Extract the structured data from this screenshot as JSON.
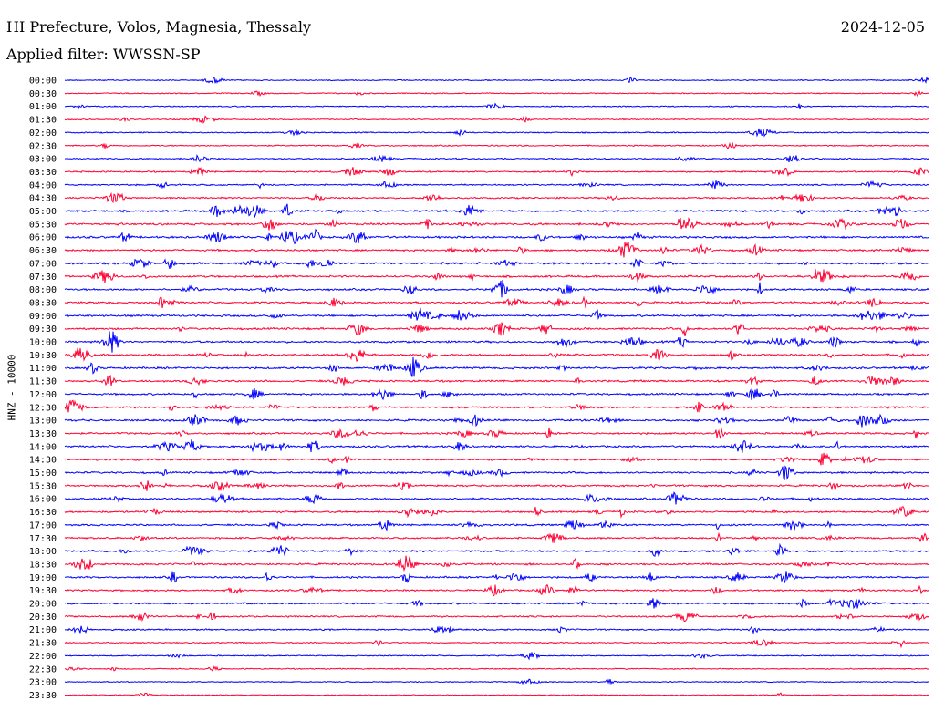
{
  "header": {
    "station": "HI Prefecture, Volos, Magnesia, Thessaly",
    "date": "2024-12-05",
    "filter": "Applied filter: WWSSN-SP"
  },
  "chart_data": {
    "type": "line",
    "ylabel": "HNZ - 10000",
    "colors": [
      "#0000ff",
      "#ff0033"
    ],
    "rows": [
      "00:00",
      "00:30",
      "01:00",
      "01:30",
      "02:00",
      "02:30",
      "03:00",
      "03:30",
      "04:00",
      "04:30",
      "05:00",
      "05:30",
      "06:00",
      "06:30",
      "07:00",
      "07:30",
      "08:00",
      "08:30",
      "09:00",
      "09:30",
      "10:00",
      "10:30",
      "11:00",
      "11:30",
      "12:00",
      "12:30",
      "13:00",
      "13:30",
      "14:00",
      "14:30",
      "15:00",
      "15:30",
      "16:00",
      "16:30",
      "17:00",
      "17:30",
      "18:00",
      "18:30",
      "19:00",
      "19:30",
      "20:00",
      "20:30",
      "21:00",
      "21:30",
      "22:00",
      "22:30",
      "23:00",
      "23:30"
    ],
    "activity": [
      0.3,
      0.3,
      0.3,
      0.3,
      0.4,
      0.4,
      0.5,
      0.6,
      0.6,
      0.7,
      1.0,
      1.1,
      1.1,
      1.0,
      1.0,
      1.0,
      1.0,
      1.0,
      1.0,
      1.0,
      1.0,
      1.0,
      1.0,
      0.9,
      0.9,
      0.9,
      1.0,
      0.9,
      1.0,
      0.9,
      0.9,
      0.9,
      0.9,
      0.9,
      0.8,
      0.8,
      0.9,
      0.9,
      0.9,
      0.8,
      0.8,
      0.7,
      0.6,
      0.4,
      0.3,
      0.3,
      0.2,
      0.2
    ]
  }
}
